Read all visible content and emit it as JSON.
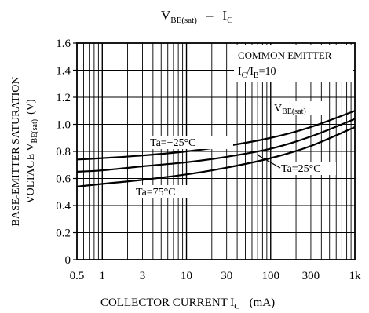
{
  "chart_data": {
    "type": "line",
    "title": {
      "main": "V",
      "main_sub": "BE(sat)",
      "sep": "–",
      "sec": "I",
      "sec_sub": "C"
    },
    "xlabel": {
      "text": "COLLECTOR CURRENT I",
      "sub": "C",
      "unit": "(mA)"
    },
    "ylabel": {
      "line1": "BASE-EMITTER SATURATION",
      "line2_pre": "VOLTAGE V",
      "line2_sub": "BE(sat)",
      "line2_unit": "(V)"
    },
    "x_scale": "log",
    "xlim": [
      0.5,
      1000
    ],
    "ylim": [
      0,
      1.6
    ],
    "x_ticks": [
      {
        "value": 0.5,
        "label": "0.5"
      },
      {
        "value": 1,
        "label": "1"
      },
      {
        "value": 3,
        "label": "3"
      },
      {
        "value": 10,
        "label": "10"
      },
      {
        "value": 30,
        "label": "30"
      },
      {
        "value": 100,
        "label": "100"
      },
      {
        "value": 300,
        "label": "300"
      },
      {
        "value": 1000,
        "label": "1k"
      }
    ],
    "y_ticks": [
      {
        "value": 0,
        "label": "0"
      },
      {
        "value": 0.2,
        "label": "0.2"
      },
      {
        "value": 0.4,
        "label": "0.4"
      },
      {
        "value": 0.6,
        "label": "0.6"
      },
      {
        "value": 0.8,
        "label": "0.8"
      },
      {
        "value": 1.0,
        "label": "1.0"
      },
      {
        "value": 1.2,
        "label": "1.2"
      },
      {
        "value": 1.4,
        "label": "1.4"
      },
      {
        "value": 1.6,
        "label": "1.6"
      }
    ],
    "grid": true,
    "conditions": {
      "line1": "COMMON EMITTER",
      "line2_pre": "I",
      "line2_sub1": "C",
      "line2_mid": "/I",
      "line2_sub2": "B",
      "line2_post": "=10"
    },
    "curve_label": {
      "pre": "V",
      "sub": "BE(sat)"
    },
    "series": [
      {
        "name": "Ta=−25°C",
        "x": [
          0.5,
          1,
          3,
          10,
          30,
          100,
          300,
          1000
        ],
        "y": [
          0.74,
          0.75,
          0.77,
          0.8,
          0.84,
          0.9,
          0.98,
          1.1
        ]
      },
      {
        "name": "Ta=25°C",
        "x": [
          0.5,
          1,
          3,
          10,
          30,
          100,
          300,
          1000
        ],
        "y": [
          0.65,
          0.66,
          0.69,
          0.72,
          0.76,
          0.82,
          0.91,
          1.04
        ]
      },
      {
        "name": "Ta=75°C",
        "x": [
          0.5,
          1,
          3,
          10,
          30,
          100,
          300,
          1000
        ],
        "y": [
          0.54,
          0.56,
          0.59,
          0.63,
          0.68,
          0.75,
          0.84,
          0.98
        ]
      }
    ],
    "colors": {
      "line": "#000000",
      "grid": "#000000",
      "background": "#ffffff"
    }
  }
}
